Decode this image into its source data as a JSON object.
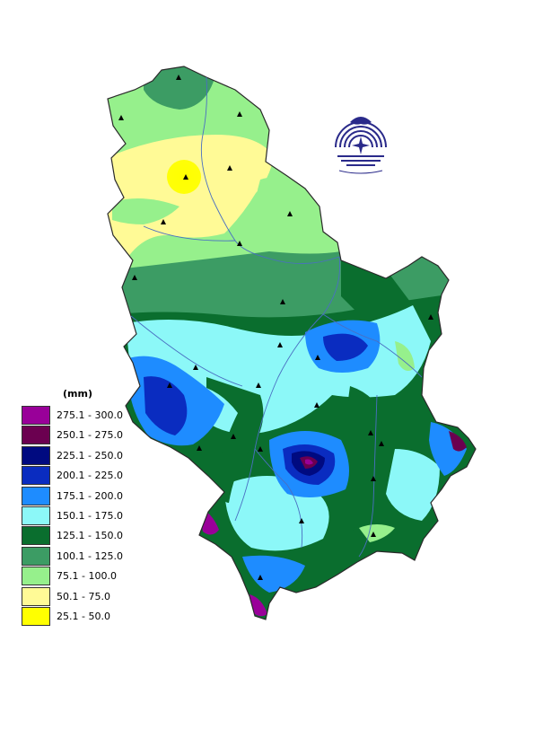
{
  "legend": {
    "unit": "(mm)",
    "classes": [
      {
        "label": "275.1 - 300.0",
        "color": "#990099"
      },
      {
        "label": "250.1 - 275.0",
        "color": "#6b0050"
      },
      {
        "label": "225.1 - 250.0",
        "color": "#000a80"
      },
      {
        "label": "200.1 - 225.0",
        "color": "#0a2cc0"
      },
      {
        "label": "175.1 - 200.0",
        "color": "#1e8cff"
      },
      {
        "label": "150.1 - 175.0",
        "color": "#8cf8f8"
      },
      {
        "label": "125.1 - 150.0",
        "color": "#0a6e2e"
      },
      {
        "label": "100.1 - 125.0",
        "color": "#3c9c64"
      },
      {
        "label": "75.1 - 100.0",
        "color": "#96f08c"
      },
      {
        "label": "50.1 - 75.0",
        "color": "#fffa96"
      },
      {
        "label": "25.1 - 50.0",
        "color": "#ffff00"
      }
    ]
  },
  "map": {
    "stations_marker": "triangle-icon",
    "logo_icon": "institution-seal-icon",
    "rivers_color": "#4a6fc2"
  }
}
